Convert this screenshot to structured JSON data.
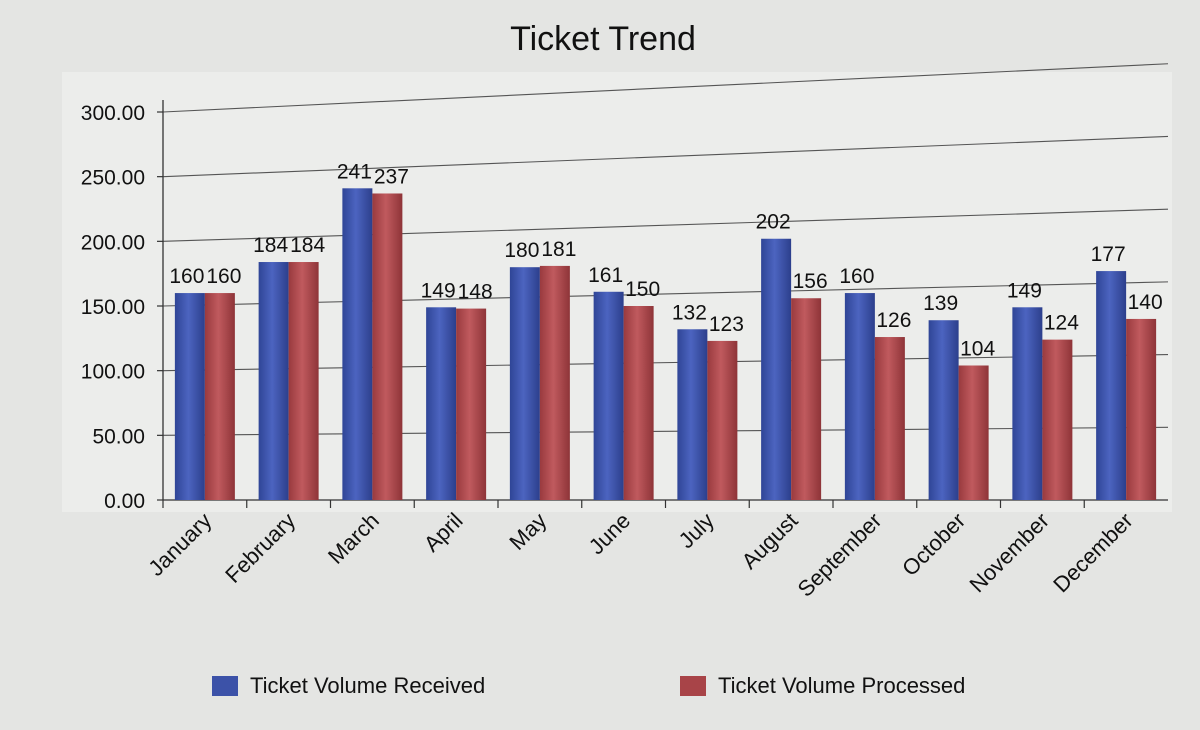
{
  "chart_data": {
    "type": "bar",
    "title": "Ticket Trend",
    "xlabel": "",
    "ylabel": "",
    "categories": [
      "January",
      "February",
      "March",
      "April",
      "May",
      "June",
      "July",
      "August",
      "September",
      "October",
      "November",
      "December"
    ],
    "series": [
      {
        "name": "Ticket Volume Received",
        "color": "#3c52a8",
        "values": [
          160,
          184,
          241,
          149,
          180,
          161,
          132,
          202,
          160,
          139,
          149,
          177
        ]
      },
      {
        "name": "Ticket Volume Processed",
        "color": "#a84448",
        "values": [
          160,
          184,
          237,
          148,
          181,
          150,
          123,
          156,
          126,
          104,
          124,
          140
        ]
      }
    ],
    "ylim": [
      0,
      300
    ],
    "yticks": [
      "0.00",
      "50.00",
      "100.00",
      "150.00",
      "200.00",
      "250.00",
      "300.00"
    ],
    "grid": true,
    "legend": "bottom"
  }
}
